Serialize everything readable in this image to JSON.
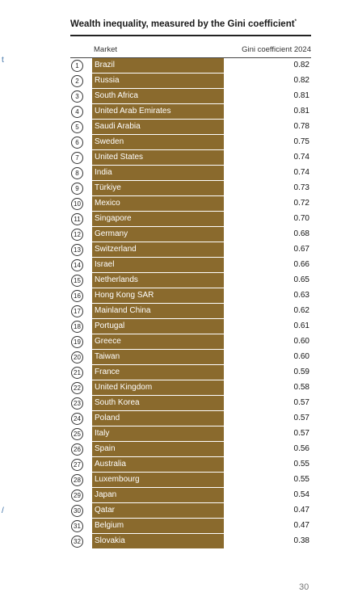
{
  "title": "Wealth inequality, measured by the Gini coefficient",
  "title_mark": "*",
  "headers": {
    "market": "Market",
    "gini": "Gini coefficient 2024"
  },
  "colors": {
    "bar": "#8a6a2d",
    "text": "#1a1a1a"
  },
  "rows": [
    {
      "rank": "1",
      "market": "Brazil",
      "gini": "0.82"
    },
    {
      "rank": "2",
      "market": "Russia",
      "gini": "0.82"
    },
    {
      "rank": "3",
      "market": "South Africa",
      "gini": "0.81"
    },
    {
      "rank": "4",
      "market": "United Arab Emirates",
      "gini": "0.81"
    },
    {
      "rank": "5",
      "market": "Saudi Arabia",
      "gini": "0.78"
    },
    {
      "rank": "6",
      "market": "Sweden",
      "gini": "0.75"
    },
    {
      "rank": "7",
      "market": "United States",
      "gini": "0.74"
    },
    {
      "rank": "8",
      "market": "India",
      "gini": "0.74"
    },
    {
      "rank": "9",
      "market": "Türkiye",
      "gini": "0.73"
    },
    {
      "rank": "10",
      "market": "Mexico",
      "gini": "0.72"
    },
    {
      "rank": "11",
      "market": "Singapore",
      "gini": "0.70"
    },
    {
      "rank": "12",
      "market": "Germany",
      "gini": "0.68"
    },
    {
      "rank": "13",
      "market": "Switzerland",
      "gini": "0.67"
    },
    {
      "rank": "14",
      "market": "Israel",
      "gini": "0.66"
    },
    {
      "rank": "15",
      "market": "Netherlands",
      "gini": "0.65"
    },
    {
      "rank": "16",
      "market": "Hong Kong SAR",
      "gini": "0.63"
    },
    {
      "rank": "17",
      "market": "Mainland China",
      "gini": "0.62"
    },
    {
      "rank": "18",
      "market": "Portugal",
      "gini": "0.61"
    },
    {
      "rank": "19",
      "market": "Greece",
      "gini": "0.60"
    },
    {
      "rank": "20",
      "market": "Taiwan",
      "gini": "0.60"
    },
    {
      "rank": "21",
      "market": "France",
      "gini": "0.59"
    },
    {
      "rank": "22",
      "market": "United Kingdom",
      "gini": "0.58"
    },
    {
      "rank": "23",
      "market": "South Korea",
      "gini": "0.57"
    },
    {
      "rank": "24",
      "market": "Poland",
      "gini": "0.57"
    },
    {
      "rank": "25",
      "market": "Italy",
      "gini": "0.57"
    },
    {
      "rank": "26",
      "market": "Spain",
      "gini": "0.56"
    },
    {
      "rank": "27",
      "market": "Australia",
      "gini": "0.55"
    },
    {
      "rank": "28",
      "market": "Luxembourg",
      "gini": "0.55"
    },
    {
      "rank": "29",
      "market": "Japan",
      "gini": "0.54"
    },
    {
      "rank": "30",
      "market": "Qatar",
      "gini": "0.47"
    },
    {
      "rank": "31",
      "market": "Belgium",
      "gini": "0.47"
    },
    {
      "rank": "32",
      "market": "Slovakia",
      "gini": "0.38"
    }
  ],
  "page_number": "30"
}
